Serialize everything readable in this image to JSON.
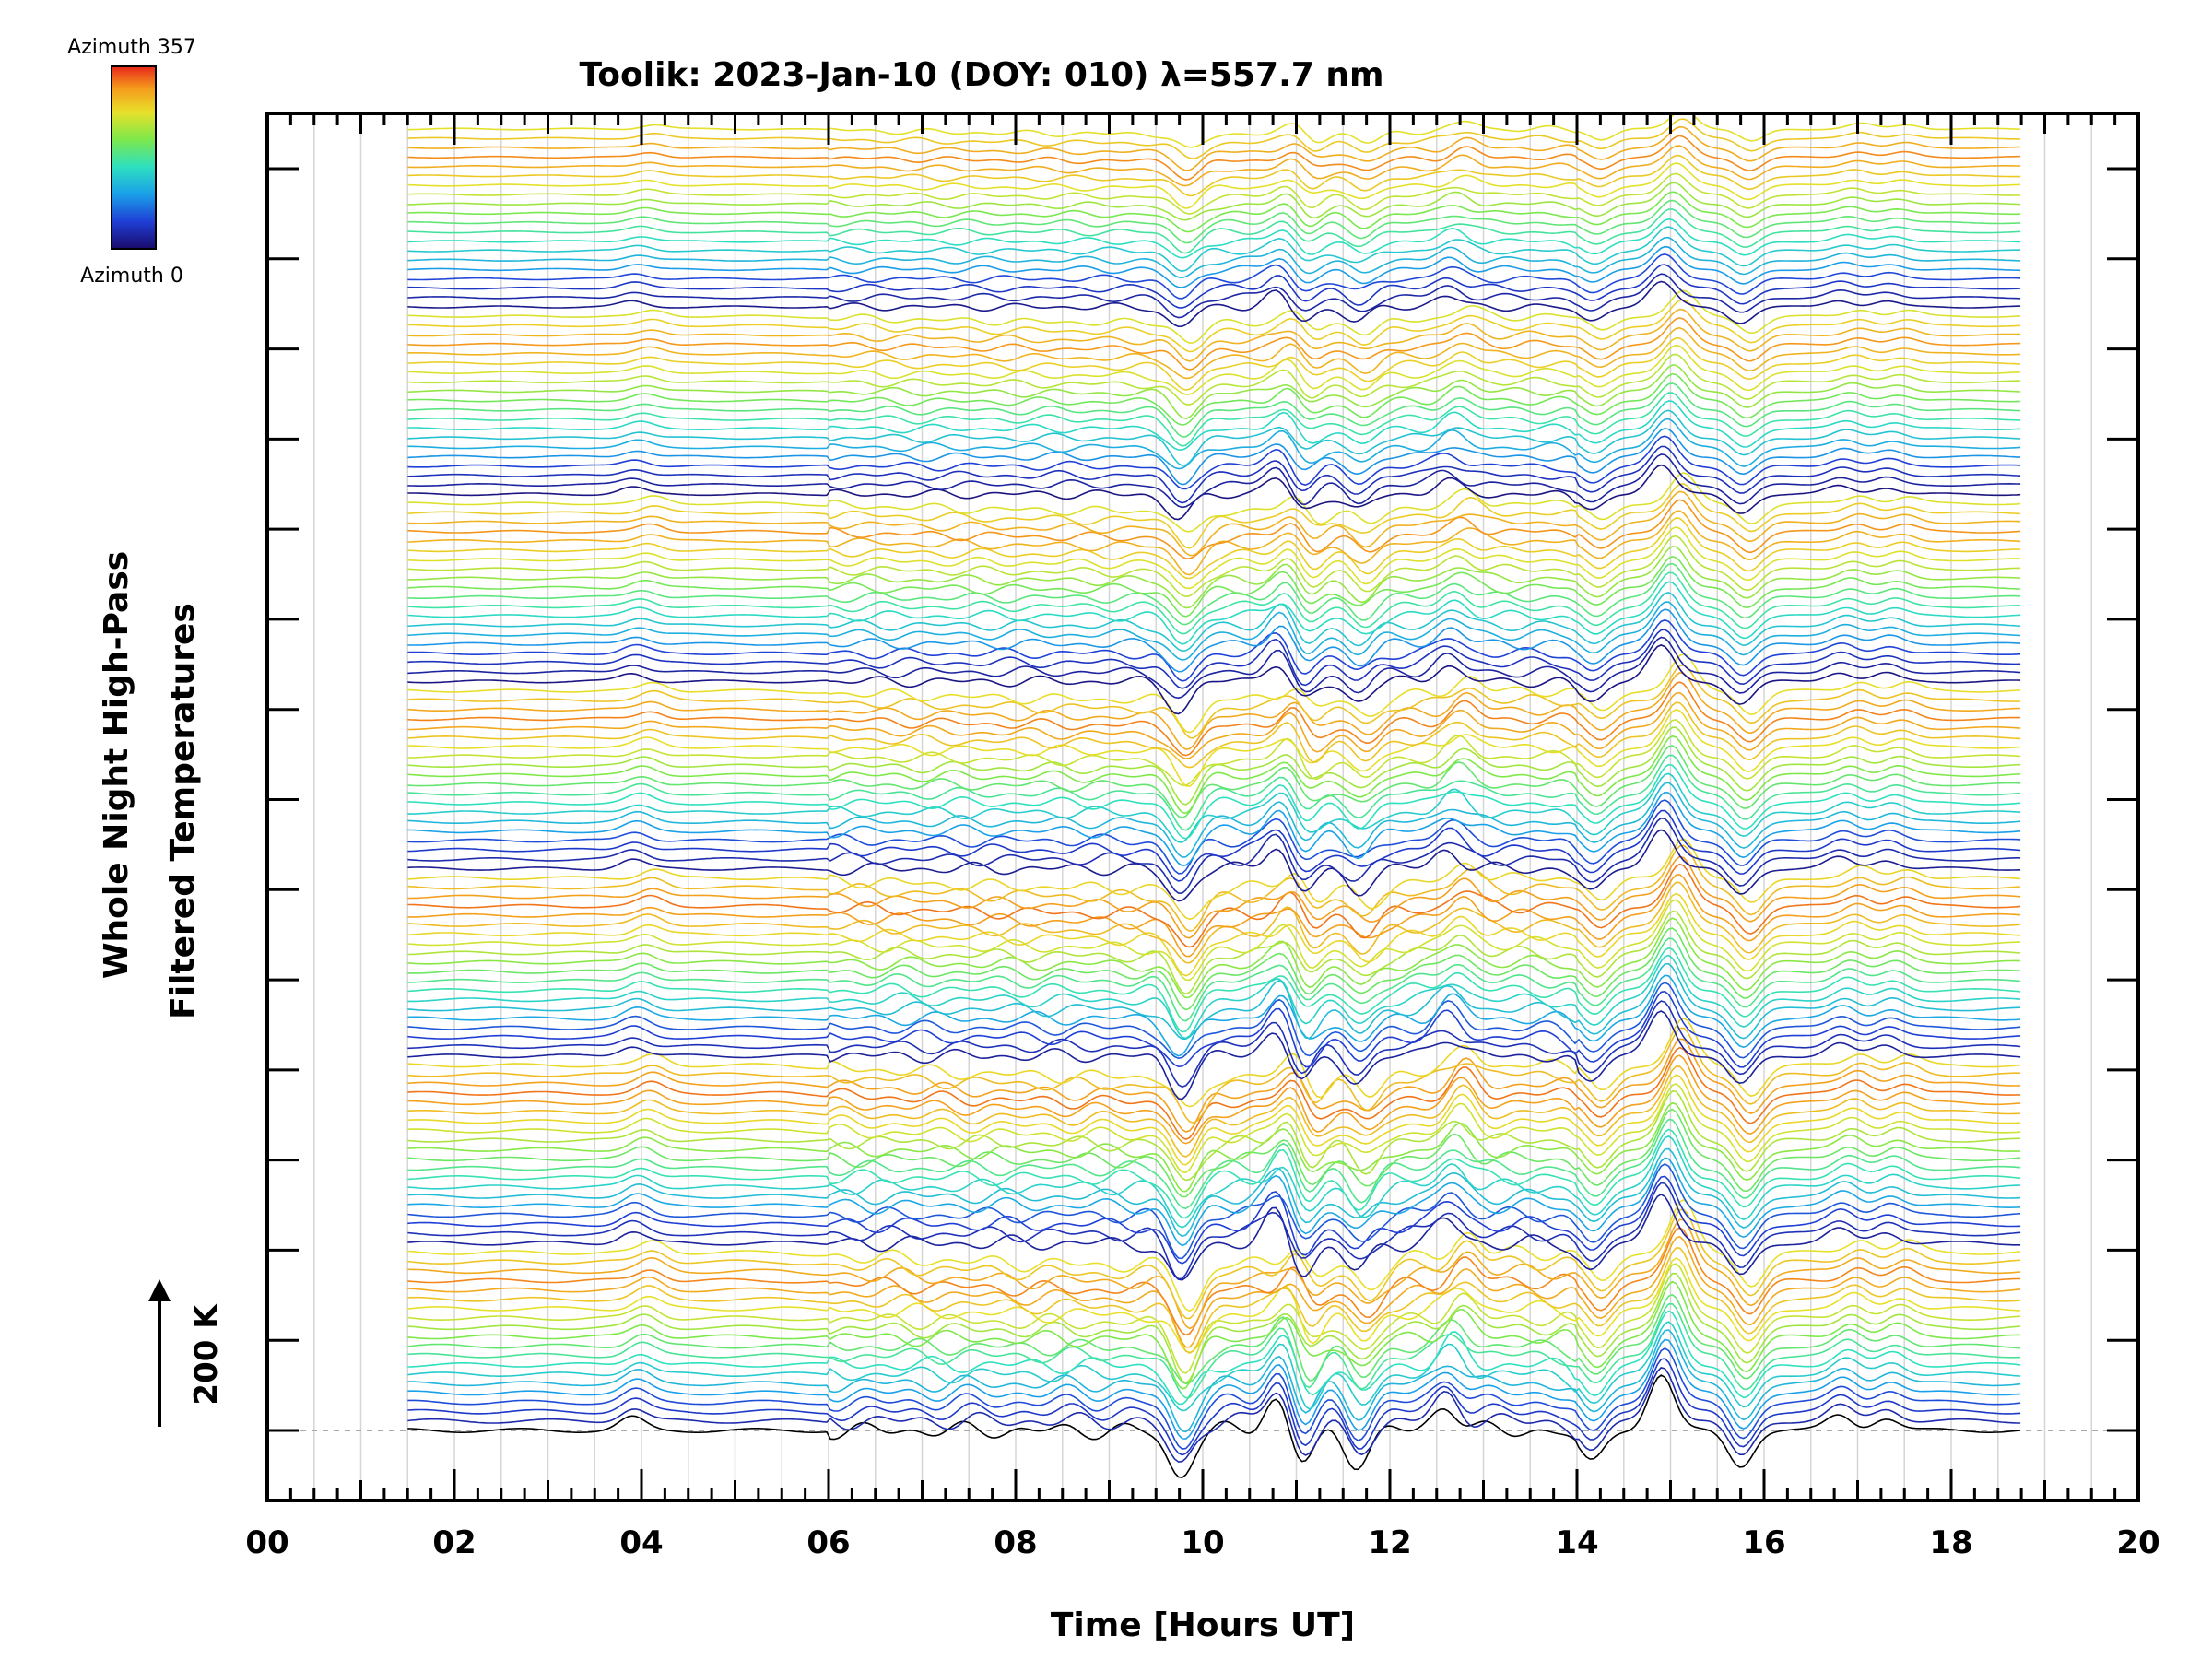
{
  "chart_data": {
    "type": "line",
    "title": "Toolik: 2023-Jan-10 (DOY: 010) λ=557.7 nm",
    "xlabel": "Time [Hours UT]",
    "ylabel_line1": "Whole Night High-Pass",
    "ylabel_line2": "Filtered Temperatures",
    "xlim": [
      0,
      20
    ],
    "x_ticks": [
      "00",
      "02",
      "04",
      "06",
      "08",
      "10",
      "12",
      "14",
      "16",
      "18",
      "20"
    ],
    "data_xrange": [
      1.5,
      18.75
    ],
    "scale_bar_label": "200 K",
    "colorbar": {
      "top_label": "Azimuth 357",
      "bottom_label": "Azimuth 0",
      "colormap": "rainbow"
    },
    "stack": {
      "groups": 7,
      "traces_per_group": 20
    },
    "features": [
      {
        "x": 4.0,
        "amp": 25
      },
      {
        "x": 9.8,
        "amp": -90
      },
      {
        "x": 10.9,
        "amp": 70
      },
      {
        "x": 11.1,
        "amp": -70
      },
      {
        "x": 11.7,
        "amp": -60
      },
      {
        "x": 12.7,
        "amp": 50
      },
      {
        "x": 14.2,
        "amp": -60
      },
      {
        "x": 15.0,
        "amp": 110
      },
      {
        "x": 15.8,
        "amp": -70
      },
      {
        "x": 16.9,
        "amp": 30
      },
      {
        "x": 17.4,
        "amp": 25
      }
    ]
  }
}
